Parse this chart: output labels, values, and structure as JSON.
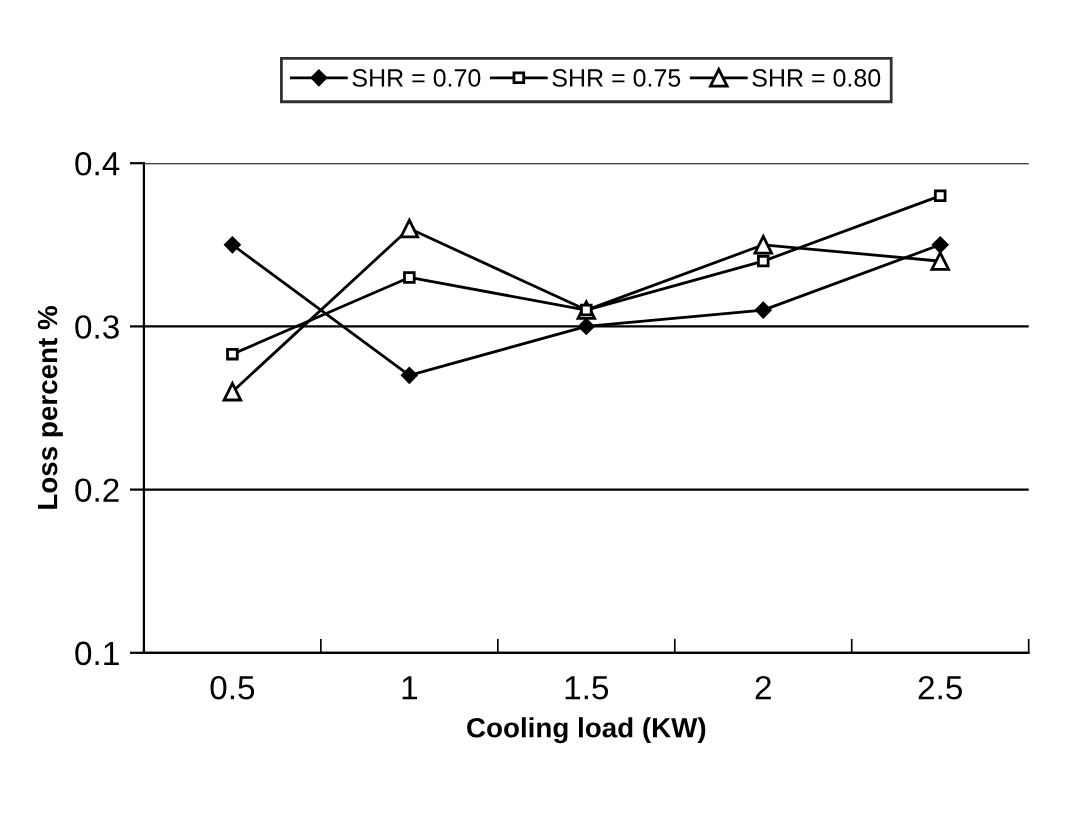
{
  "chart_data": {
    "type": "line",
    "xlabel": "Cooling load (KW)",
    "ylabel": "Loss percent %",
    "categories": [
      "0.5",
      "1",
      "1.5",
      "2",
      "2.5"
    ],
    "series": [
      {
        "name": "SHR = 0.70",
        "color": "#000000",
        "marker": "diamond",
        "values": [
          0.35,
          0.27,
          0.3,
          0.31,
          0.35
        ]
      },
      {
        "name": "SHR = 0.75",
        "color": "#000000",
        "marker": "square",
        "values": [
          0.283,
          0.33,
          0.31,
          0.34,
          0.38
        ]
      },
      {
        "name": "SHR = 0.80",
        "color": "#000000",
        "marker": "triangle",
        "values": [
          0.26,
          0.36,
          0.31,
          0.35,
          0.34
        ]
      }
    ],
    "ylim": [
      0.1,
      0.4
    ],
    "yticks": [
      0.1,
      0.2,
      0.3,
      0.4
    ],
    "grid": "y",
    "legend": "top",
    "line_style": "solid"
  }
}
